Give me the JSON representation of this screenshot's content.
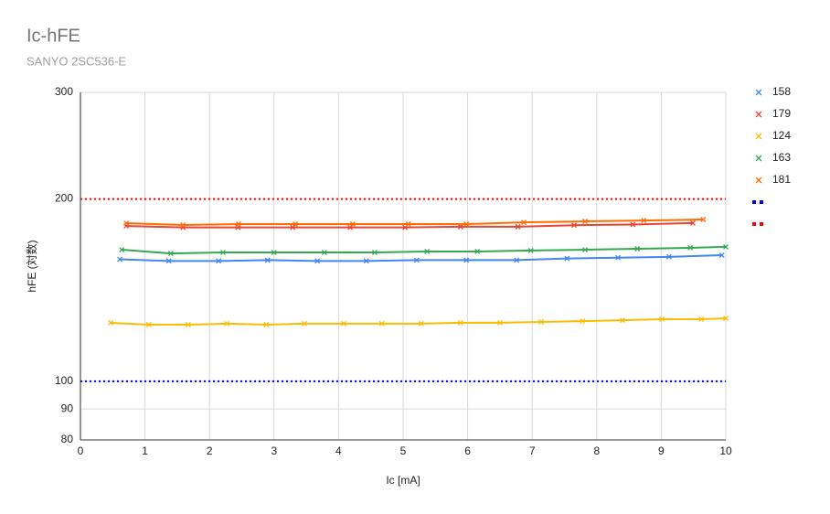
{
  "chart_data": {
    "type": "line",
    "title": "Ic-hFE",
    "subtitle": "SANYO 2SC536-E",
    "x_label": "Ic [mA]",
    "y_label": "hFE (対数)",
    "y_scale": "log",
    "xlim": [
      0,
      10
    ],
    "xticks": [
      0,
      1,
      2,
      3,
      4,
      5,
      6,
      7,
      8,
      9,
      10
    ],
    "ylim": [
      80,
      300
    ],
    "yticks": [
      80,
      90,
      100,
      200,
      300
    ],
    "grid": true,
    "legend": "right",
    "series": [
      {
        "name": "158",
        "color": "#4285f4",
        "marker": "x",
        "x": [
          0.61,
          1.37,
          2.14,
          2.9,
          3.67,
          4.43,
          5.21,
          5.98,
          6.76,
          7.54,
          8.33,
          9.12,
          9.94
        ],
        "values": [
          159,
          158,
          158,
          158.5,
          158,
          158,
          158.5,
          158.5,
          158.5,
          159.5,
          160,
          160.5,
          161.5
        ]
      },
      {
        "name": "179",
        "color": "#ea4335",
        "marker": "x",
        "x": [
          0.71,
          1.59,
          2.44,
          3.29,
          4.18,
          5.03,
          5.89,
          6.78,
          7.65,
          8.56,
          9.49
        ],
        "values": [
          180.5,
          179.5,
          179.5,
          179.5,
          179.5,
          179.5,
          180,
          180,
          181,
          181.5,
          182.5
        ]
      },
      {
        "name": "124",
        "color": "#fbbc04",
        "marker": "x",
        "x": [
          0.47,
          1.06,
          1.67,
          2.27,
          2.88,
          3.47,
          4.08,
          4.67,
          5.28,
          5.89,
          6.5,
          7.14,
          7.78,
          8.4,
          9.01,
          9.62,
          10
        ],
        "values": [
          124.9,
          124,
          124,
          124.5,
          124,
          124.5,
          124.5,
          124.5,
          124.5,
          124.9,
          124.9,
          125.3,
          125.7,
          126.1,
          126.6,
          126.6,
          127
        ]
      },
      {
        "name": "163",
        "color": "#34a853",
        "marker": "x",
        "x": [
          0.64,
          1.4,
          2.21,
          3,
          3.78,
          4.56,
          5.37,
          6.15,
          6.98,
          7.82,
          8.63,
          9.45,
          10
        ],
        "values": [
          164.9,
          162.6,
          163.2,
          163.2,
          163.2,
          163.2,
          163.8,
          163.8,
          164.4,
          164.9,
          165.5,
          166.1,
          166.7
        ]
      },
      {
        "name": "181",
        "color": "#ff6d01",
        "marker": "x",
        "x": [
          0.71,
          1.59,
          2.45,
          3.33,
          4.22,
          5.08,
          5.98,
          6.87,
          7.82,
          8.73,
          9.65
        ],
        "values": [
          182.4,
          181.2,
          181.8,
          181.8,
          181.8,
          181.8,
          181.8,
          183,
          183.7,
          184.3,
          185
        ]
      },
      {
        "color": "#0000ff",
        "style": "dotted",
        "x": [
          0,
          10
        ],
        "values": [
          100,
          100
        ]
      },
      {
        "color": "#ff0000",
        "style": "dotted",
        "x": [
          0,
          10
        ],
        "values": [
          200,
          200
        ]
      }
    ]
  }
}
